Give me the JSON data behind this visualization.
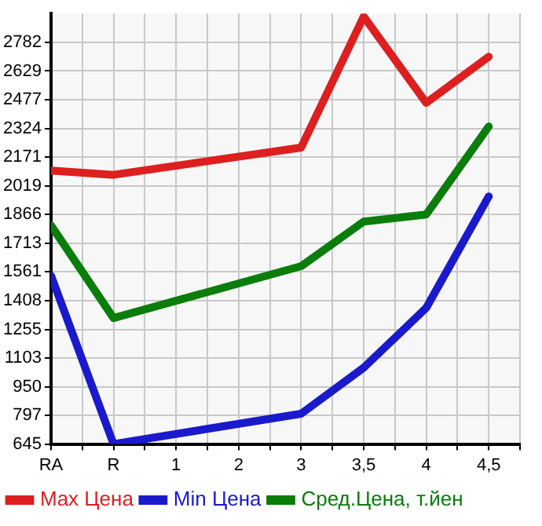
{
  "chart_data": {
    "type": "line",
    "categories": [
      "RA",
      "R",
      "1",
      "2",
      "3",
      "3,5",
      "4",
      "4,5"
    ],
    "ylim": [
      645,
      2935
    ],
    "yticks": [
      645,
      797,
      950,
      1103,
      1255,
      1408,
      1561,
      1713,
      1866,
      2019,
      2171,
      2324,
      2477,
      2629,
      2782
    ],
    "grid": true,
    "legend": "bottom",
    "marker": "none",
    "line_style": "solid",
    "series": [
      {
        "name": "Max Цена",
        "color": "#dd1f1f",
        "values": [
          2100,
          2077,
          null,
          null,
          2222,
          2919,
          2460,
          2705
        ]
      },
      {
        "name": "Min Цена",
        "color": "#1a1acc",
        "values": [
          1541,
          645,
          null,
          null,
          806,
          1051,
          1369,
          1962
        ]
      },
      {
        "name": "Сред.Цена, т.йен",
        "color": "#0a7d0a",
        "values": [
          1808,
          1315,
          null,
          null,
          1591,
          1828,
          1866,
          2334
        ]
      }
    ]
  }
}
